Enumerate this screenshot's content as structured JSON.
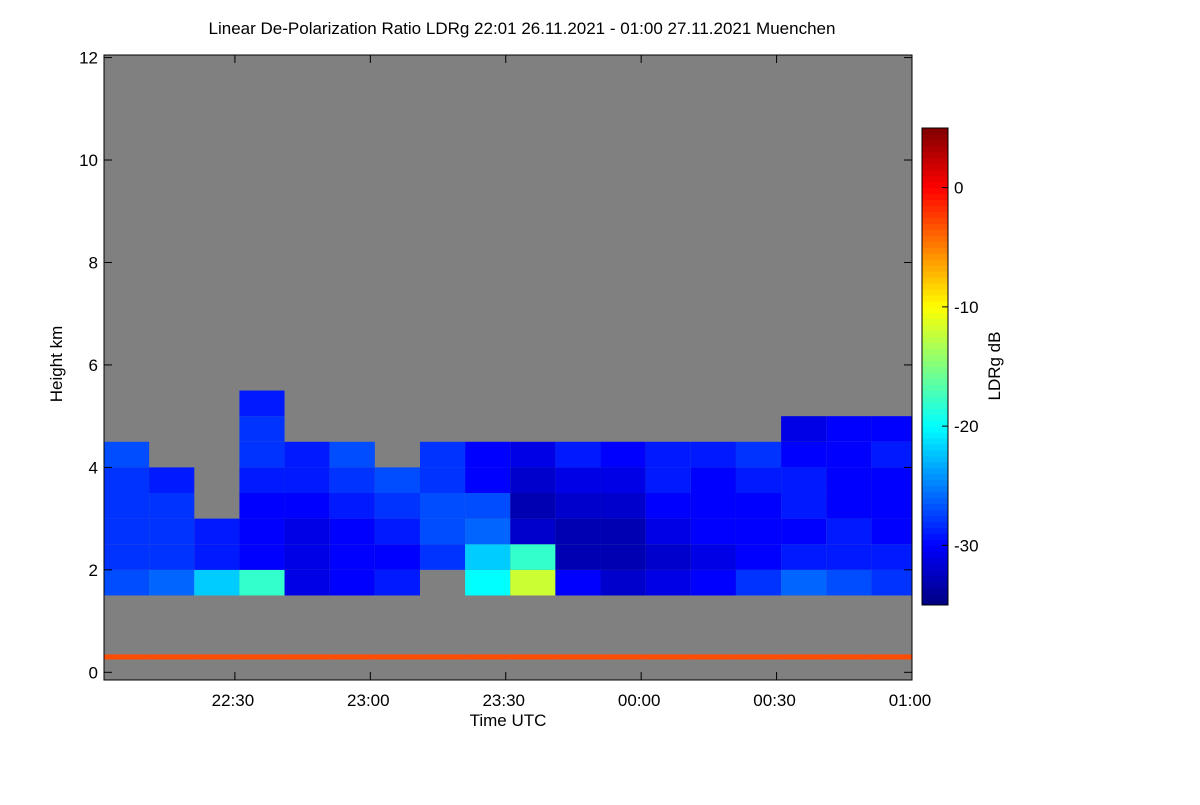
{
  "chart_data": {
    "type": "heatmap",
    "title": "Linear De-Polarization Ratio LDRg   22:01 26.11.2021 - 01:00 27.11.2021 Muenchen",
    "x_label": "Time UTC",
    "y_label": "Height km",
    "colorbar_label": "LDRg dB",
    "xlim": [
      1,
      180
    ],
    "xticks": [
      {
        "value": 30,
        "label": "22:30"
      },
      {
        "value": 60,
        "label": "23:00"
      },
      {
        "value": 90,
        "label": "23:30"
      },
      {
        "value": 120,
        "label": "00:00"
      },
      {
        "value": 150,
        "label": "00:30"
      },
      {
        "value": 180,
        "label": "01:00"
      }
    ],
    "ylim": [
      -0.15,
      12.05
    ],
    "yticks": [
      0,
      2,
      4,
      6,
      8,
      10,
      12
    ],
    "clim": [
      -35,
      5
    ],
    "cticks": [
      0,
      -10,
      -20,
      -30
    ],
    "colormap": "jet",
    "background": "#808080",
    "x_edges": [
      1,
      11,
      21,
      31,
      41,
      51,
      61,
      71,
      81,
      91,
      101,
      111,
      121,
      131,
      141,
      151,
      161,
      171,
      180
    ],
    "y_edges": [
      0,
      0.25,
      0.35,
      1.5,
      2,
      2.5,
      3,
      3.5,
      4,
      4.5,
      5,
      5.5
    ],
    "z": [
      [
        null,
        null,
        null,
        null,
        null,
        null,
        null,
        null,
        null,
        null,
        null,
        null,
        null,
        null,
        null,
        null,
        null,
        null
      ],
      [
        -3,
        -3,
        -3,
        -3,
        -3,
        -3,
        -3,
        -3,
        -3,
        -3,
        -3,
        -3,
        -3,
        -3,
        -3,
        -3,
        -3,
        -3
      ],
      [
        null,
        null,
        null,
        null,
        null,
        null,
        null,
        null,
        null,
        null,
        null,
        null,
        null,
        null,
        null,
        null,
        null,
        null
      ],
      [
        -27,
        -26,
        -22,
        -18,
        -31,
        -30,
        -29,
        null,
        -20,
        -12,
        -30,
        -32,
        -31,
        -30,
        -28,
        -26,
        -27,
        -28
      ],
      [
        -28,
        -28,
        -29,
        -30,
        -31,
        -30,
        -30,
        -28,
        -22,
        -18,
        -33,
        -33,
        -32,
        -31,
        -30,
        -29,
        -29,
        -29
      ],
      [
        -28,
        -28,
        -29,
        -30,
        -31,
        -30,
        -29,
        -27,
        -26,
        -32,
        -33,
        -33,
        -31,
        -30,
        -30,
        -30,
        -29,
        -30
      ],
      [
        -28,
        -28,
        null,
        -30,
        -30,
        -29,
        -28,
        -27,
        -27,
        -33,
        -32,
        -32,
        -30,
        -30,
        -30,
        -29,
        -30,
        -30
      ],
      [
        -28,
        -29,
        null,
        -29,
        -29,
        -28,
        -27,
        -28,
        -30,
        -32,
        -31,
        -31,
        -29,
        -30,
        -29,
        -29,
        -30,
        -30
      ],
      [
        -27,
        null,
        null,
        -28,
        -29,
        -27,
        null,
        -28,
        -30,
        -31,
        -29,
        -30,
        -29,
        -29,
        -28,
        -30,
        -30,
        -29
      ],
      [
        null,
        null,
        null,
        -28,
        null,
        null,
        null,
        null,
        null,
        null,
        null,
        null,
        null,
        null,
        null,
        -31,
        -30,
        -30
      ],
      [
        null,
        null,
        null,
        -29,
        null,
        null,
        null,
        null,
        null,
        null,
        null,
        null,
        null,
        null,
        null,
        null,
        null,
        null
      ]
    ]
  }
}
